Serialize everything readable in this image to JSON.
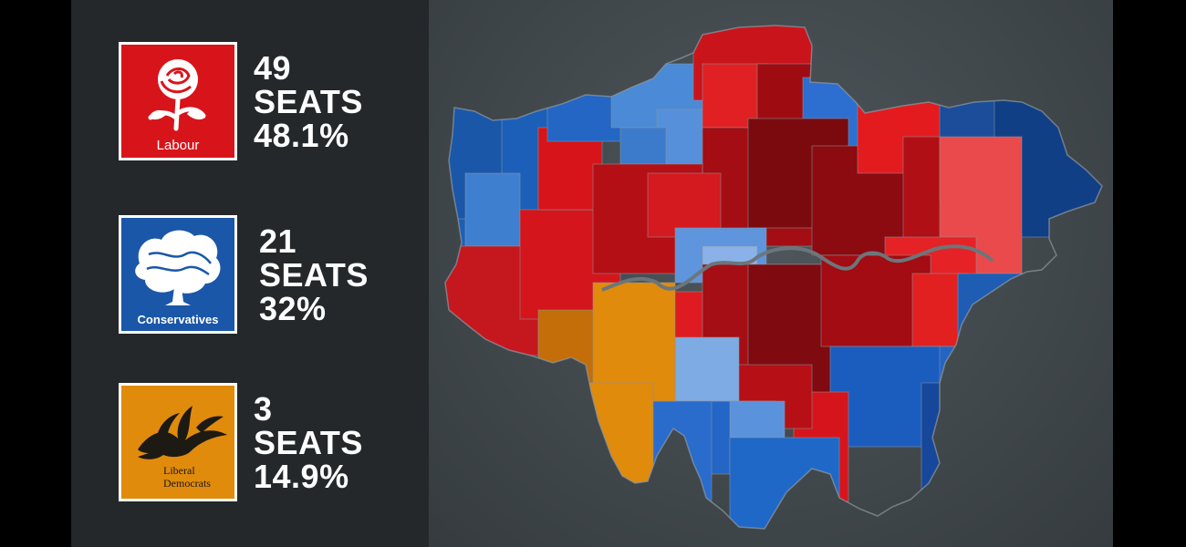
{
  "colors": {
    "labour": "#d8141b",
    "conservative": "#1a57a8",
    "libdem": "#e08b0c",
    "panel": "#24282b",
    "river": "#6b767c"
  },
  "parties": [
    {
      "key": "labour",
      "logo_icon": "labour-rose-icon",
      "logo_text": "Labour",
      "seats": "49",
      "seats_word": "SEATS",
      "share": "48.1%"
    },
    {
      "key": "conservative",
      "logo_icon": "conservative-tree-icon",
      "logo_text": "Conservatives",
      "seats": "21",
      "seats_word": "SEATS",
      "share": "32%"
    },
    {
      "key": "libdem",
      "logo_icon": "libdem-bird-icon",
      "logo_text_line1": "Liberal",
      "logo_text_line2": "Democrats",
      "seats": "3",
      "seats_word": "SEATS",
      "share": "14.9%"
    }
  ]
}
